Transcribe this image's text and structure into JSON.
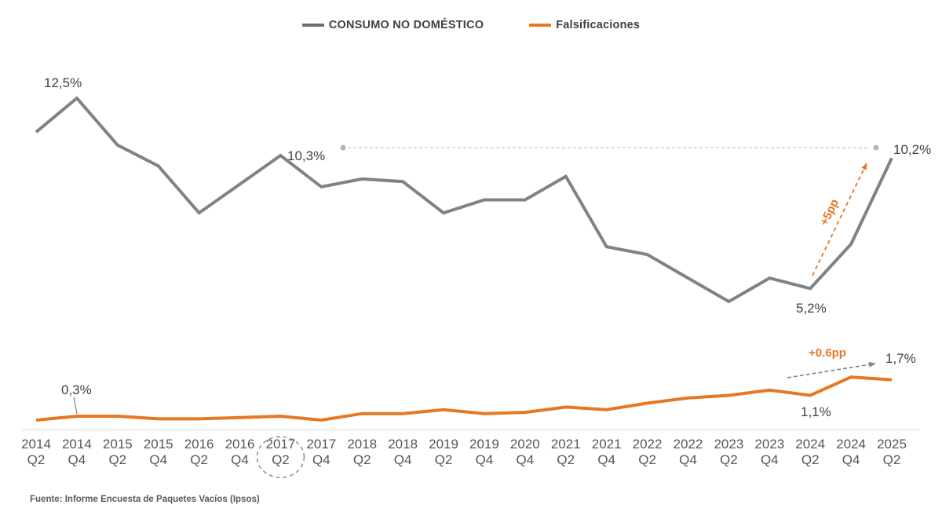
{
  "legend": [
    {
      "label": "CONSUMO NO DOMÉSTICO",
      "color": "#6d6e71"
    },
    {
      "label": "Falsificaciones",
      "color": "#e87722"
    }
  ],
  "source": "Fuente: Informe Encuesta de Paquetes Vacíos (Ipsos)",
  "chart_data": {
    "type": "line",
    "title": "",
    "xlabel": "",
    "ylabel": "",
    "ylim": [
      0,
      13.5
    ],
    "grid": false,
    "y_axis_visible": false,
    "legend_position": "top",
    "categories": [
      "2014 Q2",
      "2014 Q4",
      "2015 Q2",
      "2015 Q4",
      "2016 Q2",
      "2016 Q4",
      "2017 Q2",
      "2017 Q4",
      "2018 Q2",
      "2018 Q4",
      "2019 Q2",
      "2019 Q4",
      "2020 Q4",
      "2021 Q2",
      "2021 Q4",
      "2022 Q2",
      "2022 Q4",
      "2023 Q2",
      "2023 Q4",
      "2024 Q2",
      "2024 Q4",
      "2025 Q2"
    ],
    "circled_category": "2017 Q2",
    "series": [
      {
        "name": "CONSUMO NO DOMÉSTICO",
        "color": "#808285",
        "values": [
          11.2,
          12.5,
          10.7,
          9.9,
          8.1,
          9.2,
          10.3,
          9.1,
          9.4,
          9.3,
          8.1,
          8.6,
          8.6,
          9.5,
          6.8,
          6.5,
          5.6,
          4.7,
          5.6,
          5.2,
          6.9,
          10.2
        ]
      },
      {
        "name": "Falsificaciones",
        "color": "#e87722",
        "values": [
          0.15,
          0.3,
          0.3,
          0.2,
          0.2,
          0.25,
          0.3,
          0.15,
          0.4,
          0.4,
          0.55,
          0.4,
          0.45,
          0.65,
          0.55,
          0.8,
          1.0,
          1.1,
          1.3,
          1.1,
          1.8,
          1.7
        ]
      }
    ],
    "annotations": {
      "consumo_peak": "12,5%",
      "consumo_2017_q2": "10,3%",
      "consumo_2025_q2": "10,2%",
      "consumo_2024_q2": "5,2%",
      "consumo_change": "+5pp",
      "falsificaciones_2014_q4": "0,3%",
      "falsificaciones_2024_q2": "1,1%",
      "falsificaciones_2025_q2": "1,7%",
      "falsificaciones_change": "+0.6pp"
    }
  }
}
